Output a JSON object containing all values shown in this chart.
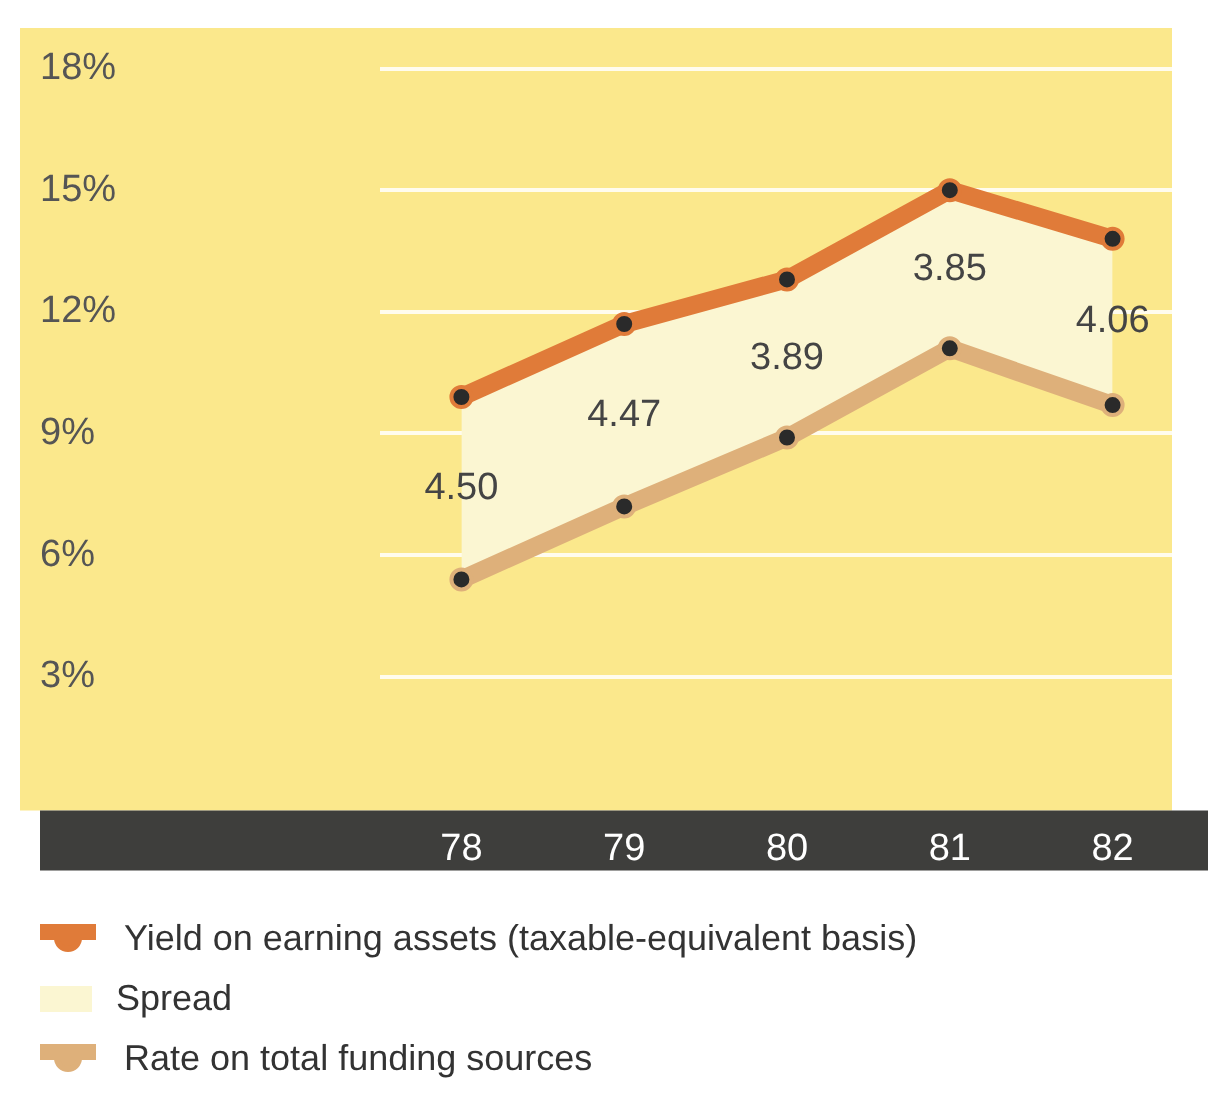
{
  "chart_data": {
    "type": "line",
    "categories": [
      "78",
      "79",
      "80",
      "81",
      "82"
    ],
    "series": [
      {
        "name": "Yield on earning assets (taxable-equivalent basis)",
        "color": "#e07b39",
        "values": [
          9.9,
          11.7,
          12.8,
          15.0,
          13.8
        ]
      },
      {
        "name": "Spread",
        "type": "area",
        "color": "#fbf6d2",
        "values": [
          null,
          null,
          null,
          null,
          null
        ],
        "lower": [
          5.4,
          7.2,
          8.9,
          11.1,
          9.7
        ],
        "upper": [
          9.9,
          11.7,
          12.8,
          15.0,
          13.8
        ]
      },
      {
        "name": "Rate on total funding sources",
        "color": "#deb07a",
        "values": [
          5.4,
          7.2,
          8.9,
          11.1,
          9.7
        ]
      }
    ],
    "ylim": [
      0,
      19
    ],
    "yticks": [
      {
        "value": 3,
        "label": "3%"
      },
      {
        "value": 6,
        "label": "6%"
      },
      {
        "value": 9,
        "label": "9%"
      },
      {
        "value": 12,
        "label": "12%"
      },
      {
        "value": 15,
        "label": "15%"
      },
      {
        "value": 18,
        "label": "18%"
      }
    ],
    "grid": "y",
    "marker": "circle",
    "legend": "bottom",
    "annotations": [
      "4.50",
      "4.47",
      "3.89",
      "3.85",
      "4.06"
    ]
  }
}
